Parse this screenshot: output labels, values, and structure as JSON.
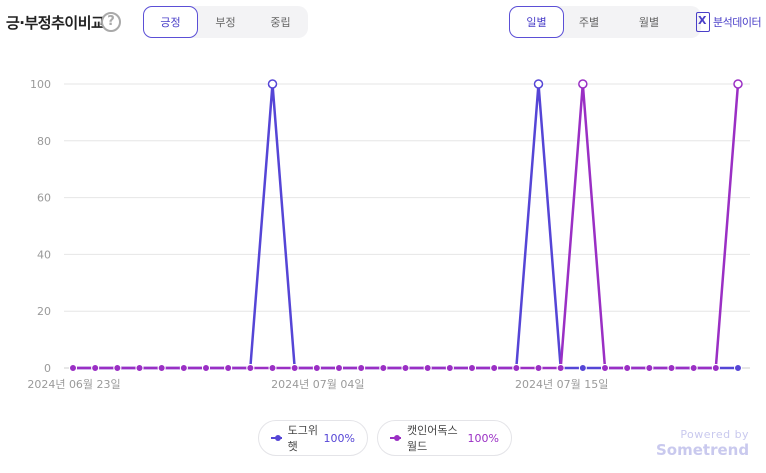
{
  "header": {
    "title": "긍·부정추이비교",
    "help_icon": "question-circle-icon",
    "sentiment_tabs": [
      "긍정",
      "부정",
      "중립"
    ],
    "sentiment_active": "긍정",
    "period_tabs": [
      "일별",
      "주별",
      "월별"
    ],
    "period_active": "일별",
    "export_label": "분석데이터",
    "export_icon": "excel-icon"
  },
  "legend": [
    {
      "name": "도그위햇",
      "value": "100%",
      "color": "#5545d6"
    },
    {
      "name": "캣인어독스월드",
      "value": "100%",
      "color": "#9a2fc4"
    }
  ],
  "branding": {
    "line1": "Powered by",
    "line2": "Sometrend"
  },
  "chart_data": {
    "type": "line",
    "x": [
      "2024-06-23",
      "2024-06-24",
      "2024-06-25",
      "2024-06-26",
      "2024-06-27",
      "2024-06-28",
      "2024-06-29",
      "2024-06-30",
      "2024-07-01",
      "2024-07-02",
      "2024-07-03",
      "2024-07-04",
      "2024-07-05",
      "2024-07-06",
      "2024-07-07",
      "2024-07-08",
      "2024-07-09",
      "2024-07-10",
      "2024-07-11",
      "2024-07-12",
      "2024-07-13",
      "2024-07-14",
      "2024-07-15",
      "2024-07-16",
      "2024-07-17",
      "2024-07-18",
      "2024-07-19",
      "2024-07-20",
      "2024-07-21",
      "2024-07-22",
      "2024-07-23"
    ],
    "x_tick_labels": [
      {
        "index": 0,
        "label": "2024년 06월 23일"
      },
      {
        "index": 11,
        "label": "2024년 07월 04일"
      },
      {
        "index": 22,
        "label": "2024년 07월 15일"
      }
    ],
    "series": [
      {
        "name": "도그위햇",
        "color": "#5545d6",
        "values": [
          0,
          0,
          0,
          0,
          0,
          0,
          0,
          0,
          0,
          100,
          0,
          0,
          0,
          0,
          0,
          0,
          0,
          0,
          0,
          0,
          0,
          100,
          0,
          0,
          0,
          0,
          0,
          0,
          0,
          0,
          0
        ]
      },
      {
        "name": "캣인어독스월드",
        "color": "#9a2fc4",
        "values": [
          0,
          0,
          0,
          0,
          0,
          0,
          0,
          0,
          0,
          0,
          0,
          0,
          0,
          0,
          0,
          0,
          0,
          0,
          0,
          0,
          0,
          0,
          0,
          100,
          0,
          0,
          0,
          0,
          0,
          0,
          100
        ]
      }
    ],
    "ylim": [
      0,
      100
    ],
    "yticks": [
      0,
      20,
      40,
      60,
      80,
      100
    ],
    "grid": true,
    "xlabel": "",
    "ylabel": "",
    "legend_position": "bottom"
  }
}
